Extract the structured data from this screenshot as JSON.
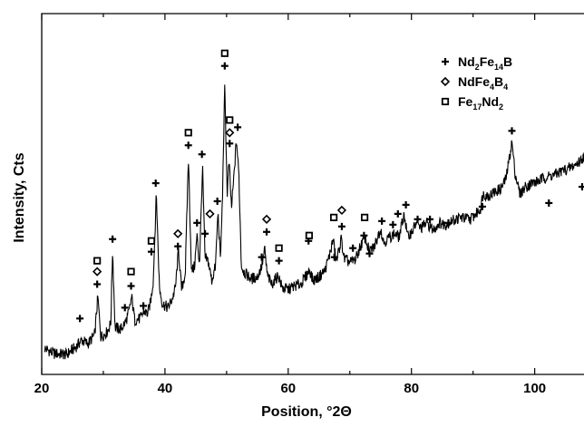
{
  "chart_data": {
    "type": "line",
    "xlabel": "Position, °2Θ",
    "ylabel": "Intensity, Cts",
    "xlim": [
      20,
      108
    ],
    "ylim": [
      0,
      100
    ],
    "x_ticks": [
      20,
      40,
      60,
      80,
      100
    ],
    "x_tick_labels": [
      "20",
      "40",
      "60",
      "80",
      "100"
    ],
    "y_tick_labels_shown": false,
    "grid": false,
    "legend_position": "top-right",
    "series": [
      {
        "type": "line",
        "color": "#000000",
        "points": [
          [
            20.5,
            7.2
          ],
          [
            22,
            5.8
          ],
          [
            24,
            5.5
          ],
          [
            25.5,
            7.5
          ],
          [
            26.5,
            9.5
          ],
          [
            27.5,
            8.5
          ],
          [
            28.6,
            11
          ],
          [
            29.1,
            21.5
          ],
          [
            29.6,
            10.5
          ],
          [
            30.5,
            11.5
          ],
          [
            31.2,
            14
          ],
          [
            31.5,
            34.5
          ],
          [
            31.9,
            13
          ],
          [
            32.8,
            12.5
          ],
          [
            33.6,
            14.5
          ],
          [
            34.2,
            17.5
          ],
          [
            34.6,
            21.5
          ],
          [
            35.1,
            15
          ],
          [
            36,
            15.5
          ],
          [
            36.6,
            17.5
          ],
          [
            37.2,
            16.8
          ],
          [
            37.7,
            20.5
          ],
          [
            38.1,
            26
          ],
          [
            38.6,
            50
          ],
          [
            39.1,
            24
          ],
          [
            39.6,
            19.5
          ],
          [
            40.5,
            18.5
          ],
          [
            41.2,
            21
          ],
          [
            41.7,
            24
          ],
          [
            42.2,
            34.5
          ],
          [
            42.7,
            23.5
          ],
          [
            43.3,
            28
          ],
          [
            43.8,
            60
          ],
          [
            44.3,
            28.5
          ],
          [
            44.8,
            30
          ],
          [
            45.2,
            38.5
          ],
          [
            45.6,
            30.5
          ],
          [
            46.1,
            57.5
          ],
          [
            46.5,
            32
          ],
          [
            47,
            31.5
          ],
          [
            47.6,
            26
          ],
          [
            48.2,
            30
          ],
          [
            48.6,
            45
          ],
          [
            49,
            32
          ],
          [
            49.3,
            47
          ],
          [
            49.7,
            80
          ],
          [
            50.1,
            50
          ],
          [
            50.4,
            59
          ],
          [
            50.8,
            46
          ],
          [
            51.2,
            55
          ],
          [
            51.6,
            65
          ],
          [
            52,
            55
          ],
          [
            52.4,
            30
          ],
          [
            53,
            28
          ],
          [
            54,
            26.5
          ],
          [
            55,
            27
          ],
          [
            55.7,
            30
          ],
          [
            56.2,
            34.5
          ],
          [
            56.6,
            27.5
          ],
          [
            57.3,
            25
          ],
          [
            58.4,
            27.5
          ],
          [
            59,
            24
          ],
          [
            60,
            23.5
          ],
          [
            61,
            24.5
          ],
          [
            62,
            25
          ],
          [
            62.8,
            27
          ],
          [
            63.5,
            29
          ],
          [
            64,
            26
          ],
          [
            65,
            27
          ],
          [
            66,
            29
          ],
          [
            66.7,
            33
          ],
          [
            67.3,
            37.5
          ],
          [
            67.8,
            31
          ],
          [
            68.6,
            37.5
          ],
          [
            69.1,
            32
          ],
          [
            70,
            31
          ],
          [
            71,
            32
          ],
          [
            71.6,
            35
          ],
          [
            72.4,
            38
          ],
          [
            73.2,
            34
          ],
          [
            74,
            35.5
          ],
          [
            75,
            40.5
          ],
          [
            75.5,
            36.5
          ],
          [
            76.4,
            38
          ],
          [
            77.3,
            39
          ],
          [
            78,
            38
          ],
          [
            78.8,
            44.5
          ],
          [
            79.4,
            38
          ],
          [
            80.2,
            40
          ],
          [
            80.8,
            42
          ],
          [
            81.5,
            40.5
          ],
          [
            82.5,
            42
          ],
          [
            83.5,
            40
          ],
          [
            84.5,
            42
          ],
          [
            85.5,
            41.5
          ],
          [
            86.5,
            42.5
          ],
          [
            88,
            43.5
          ],
          [
            89.5,
            43
          ],
          [
            90.5,
            44.5
          ],
          [
            91.2,
            46
          ],
          [
            91.6,
            50
          ],
          [
            92.5,
            49.5
          ],
          [
            93.5,
            50.5
          ],
          [
            94.5,
            51.5
          ],
          [
            95.3,
            54
          ],
          [
            95.9,
            60
          ],
          [
            96.3,
            64.5
          ],
          [
            96.8,
            56
          ],
          [
            97.6,
            50
          ],
          [
            98.5,
            52
          ],
          [
            99.5,
            53
          ],
          [
            100.5,
            53.5
          ],
          [
            101.5,
            54.5
          ],
          [
            102.5,
            55
          ],
          [
            103.5,
            55.5
          ],
          [
            104.5,
            56.5
          ],
          [
            105.5,
            57
          ],
          [
            106.5,
            58
          ],
          [
            107.3,
            59
          ],
          [
            108,
            60.5
          ]
        ]
      }
    ],
    "marker_series": [
      {
        "name": "Nd2Fe14B",
        "symbol": "plus",
        "points": [
          [
            26.2,
            15.5
          ],
          [
            29.0,
            25
          ],
          [
            31.5,
            37.5
          ],
          [
            33.5,
            18.5
          ],
          [
            34.5,
            24.5
          ],
          [
            36.5,
            19
          ],
          [
            37.8,
            34
          ],
          [
            38.5,
            53
          ],
          [
            42.1,
            35.5
          ],
          [
            43.8,
            63.5
          ],
          [
            45.2,
            42
          ],
          [
            46.0,
            61
          ],
          [
            46.5,
            39
          ],
          [
            48.5,
            48
          ],
          [
            49.7,
            85.5
          ],
          [
            50.5,
            64
          ],
          [
            51.8,
            68.5
          ],
          [
            55.7,
            32.5
          ],
          [
            56.5,
            39.5
          ],
          [
            58.5,
            31.5
          ],
          [
            63.3,
            37
          ],
          [
            67.5,
            32.5
          ],
          [
            68.7,
            41
          ],
          [
            70.5,
            35
          ],
          [
            72.3,
            38.5
          ],
          [
            73.2,
            33.5
          ],
          [
            75.2,
            42.5
          ],
          [
            77.0,
            41.5
          ],
          [
            77.8,
            44.5
          ],
          [
            79.1,
            47
          ],
          [
            81.0,
            43
          ],
          [
            83.0,
            43
          ],
          [
            86.0,
            42
          ],
          [
            91.5,
            46.5
          ],
          [
            96.3,
            67.5
          ],
          [
            102.3,
            47.5
          ],
          [
            107.7,
            52
          ]
        ]
      },
      {
        "name": "NdFe4B4",
        "symbol": "diamond",
        "points": [
          [
            29.0,
            28.5
          ],
          [
            42.1,
            39
          ],
          [
            47.3,
            44.5
          ],
          [
            50.5,
            67
          ],
          [
            56.5,
            43
          ],
          [
            68.7,
            45.5
          ]
        ]
      },
      {
        "name": "Fe17Nd2",
        "symbol": "square",
        "points": [
          [
            29.0,
            31.5
          ],
          [
            34.5,
            28.5
          ],
          [
            37.8,
            37
          ],
          [
            43.8,
            67
          ],
          [
            49.7,
            89
          ],
          [
            50.5,
            70.5
          ],
          [
            58.5,
            35
          ],
          [
            63.4,
            38.5
          ],
          [
            67.4,
            43.5
          ],
          [
            72.4,
            43.5
          ]
        ]
      }
    ]
  },
  "legend": [
    {
      "symbol": "plus",
      "pre": "Nd",
      "sub1": "2",
      "mid": "Fe",
      "sub2": "14",
      "post": "B"
    },
    {
      "symbol": "diamond",
      "pre": "NdFe",
      "sub1": "4",
      "mid": "B",
      "sub2": "4",
      "post": ""
    },
    {
      "symbol": "square",
      "pre": "Fe",
      "sub1": "17",
      "mid": "Nd",
      "sub2": "2",
      "post": ""
    }
  ]
}
